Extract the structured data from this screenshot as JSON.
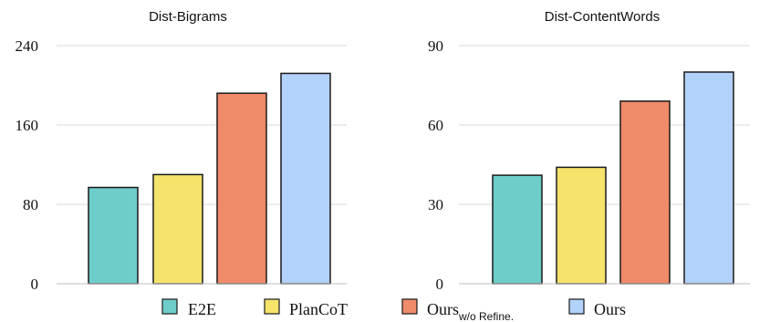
{
  "chart_data": [
    {
      "type": "bar",
      "title": "Dist-Bigrams",
      "categories": [
        "E2E",
        "PlanCoT",
        "Ours w/o Refine.",
        "Ours"
      ],
      "values": [
        97,
        110,
        192,
        212
      ],
      "ylim": [
        0,
        240
      ],
      "yticks": [
        "240",
        "160",
        "80",
        "0"
      ],
      "grid": true
    },
    {
      "type": "bar",
      "title": "Dist-ContentWords",
      "categories": [
        "E2E",
        "PlanCoT",
        "Ours w/o Refine.",
        "Ours"
      ],
      "values": [
        41,
        44,
        69,
        80
      ],
      "ylim": [
        0,
        90
      ],
      "yticks": [
        "90",
        "60",
        "30",
        "0"
      ],
      "grid": true
    }
  ],
  "legend": [
    {
      "label": "E2E",
      "sub": "",
      "color": "#6ecdc9"
    },
    {
      "label": "PlanCoT",
      "sub": "",
      "color": "#f6e36b"
    },
    {
      "label": "Ours",
      "sub": "w/o Refine.",
      "color": "#ef8b69"
    },
    {
      "label": "Ours",
      "sub": "",
      "color": "#b2d1fb"
    }
  ],
  "colors": [
    "#6ecdc9",
    "#f6e36b",
    "#ef8b69",
    "#b2d1fb"
  ]
}
